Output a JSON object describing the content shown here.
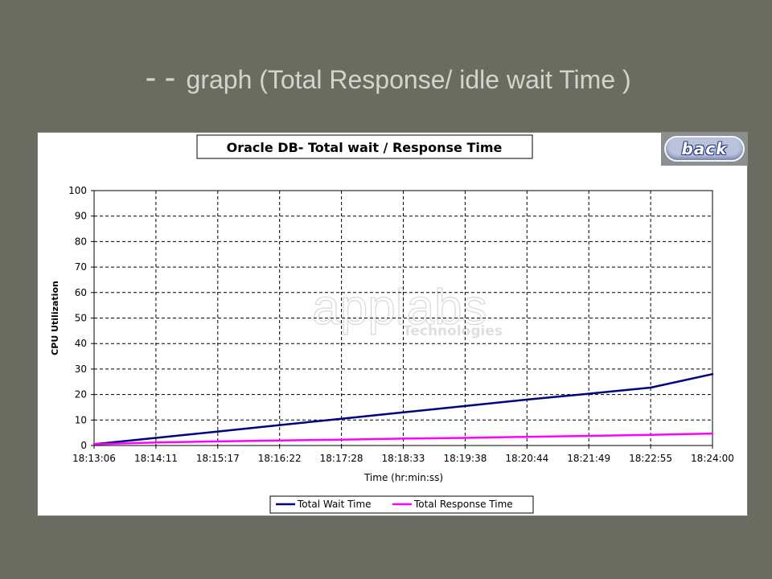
{
  "slide": {
    "title_prefix": "--",
    "title": "graph (Total Response/ idle wait Time )"
  },
  "back_button": {
    "label": "back"
  },
  "watermark": {
    "text1": "applabs",
    "text2": "Technologies"
  },
  "colors": {
    "background": "#6b6c60",
    "wait_series": "#000080",
    "response_series": "#ff00ff"
  },
  "chart_data": {
    "type": "line",
    "title": "Oracle DB- Total wait  / Response Time",
    "xlabel": "Time (hr:min:ss)",
    "ylabel": "CPU Utilization",
    "ylim": [
      0,
      100
    ],
    "yticks": [
      0,
      10,
      20,
      30,
      40,
      50,
      60,
      70,
      80,
      90,
      100
    ],
    "categories": [
      "18:13:06",
      "18:14:11",
      "18:15:17",
      "18:16:22",
      "18:17:28",
      "18:18:33",
      "18:19:38",
      "18:20:44",
      "18:21:49",
      "18:22:55",
      "18:24:00"
    ],
    "grid": true,
    "legend": "bottom",
    "series": [
      {
        "name": "Total Wait Time",
        "color": "#000080",
        "values": [
          0.5,
          3.0,
          5.5,
          8.0,
          10.5,
          13.0,
          15.5,
          18.0,
          20.3,
          22.7,
          28.0
        ]
      },
      {
        "name": "Total Response Time",
        "color": "#ff00ff",
        "values": [
          0.5,
          1.2,
          1.6,
          2.0,
          2.3,
          2.7,
          3.0,
          3.4,
          3.8,
          4.2,
          4.7
        ]
      }
    ]
  }
}
